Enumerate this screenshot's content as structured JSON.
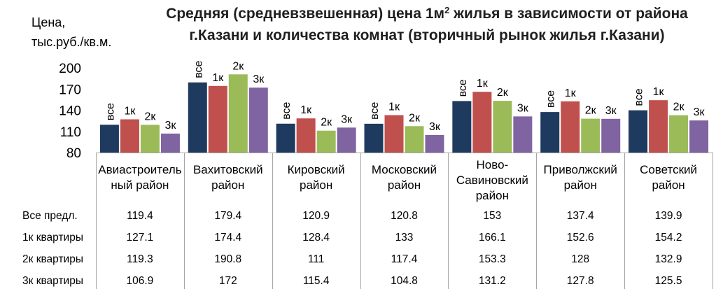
{
  "chart_data": {
    "type": "bar",
    "title_part1": "Средняя (средневзвешенная) цена 1м",
    "title_sup": "2",
    "title_part2": " жилья в зависимости от района",
    "title_line2": "г.Казани и количества комнат (вторичный рынок жилья г.Казани)",
    "ylabel_line1": "Цена,",
    "ylabel_line2": "тыс.руб./кв.м.",
    "ylim": [
      80,
      200
    ],
    "yticks": [
      80,
      110,
      140,
      170,
      200
    ],
    "categories": [
      "Авиастроитель\nный район",
      "Вахитовский\nрайон",
      "Кировский\nрайон",
      "Московский\nрайон",
      "Ново-\nСавиновский\nрайон",
      "Приволжский\nрайон",
      "Советский\nрайон"
    ],
    "series": [
      {
        "name": "Все предл.",
        "short": "все",
        "color": "#1f3a5f",
        "values": [
          119.4,
          179.4,
          120.9,
          120.8,
          153,
          137.4,
          139.9
        ]
      },
      {
        "name": "1к квартиры",
        "short": "1к",
        "color": "#c0504d",
        "values": [
          127.1,
          174.4,
          128.4,
          133,
          166.1,
          152.6,
          154.2
        ]
      },
      {
        "name": "2к квартиры",
        "short": "2к",
        "color": "#9bbb59",
        "values": [
          119.3,
          190.8,
          111,
          117.4,
          153.3,
          128,
          132.9
        ]
      },
      {
        "name": "3к квартиры",
        "short": "3к",
        "color": "#8064a2",
        "values": [
          106.9,
          172,
          115.4,
          104.8,
          131.2,
          127.8,
          125.5
        ]
      }
    ],
    "table_display": [
      [
        "119.4",
        "179.4",
        "120.9",
        "120.8",
        "153",
        "137.4",
        "139.9"
      ],
      [
        "127.1",
        "174.4",
        "128.4",
        "133",
        "166.1",
        "152.6",
        "154.2"
      ],
      [
        "119.3",
        "190.8",
        "111",
        "117.4",
        "153.3",
        "128",
        "132.9"
      ],
      [
        "106.9",
        "172",
        "115.4",
        "104.8",
        "131.2",
        "127.8",
        "125.5"
      ]
    ]
  }
}
